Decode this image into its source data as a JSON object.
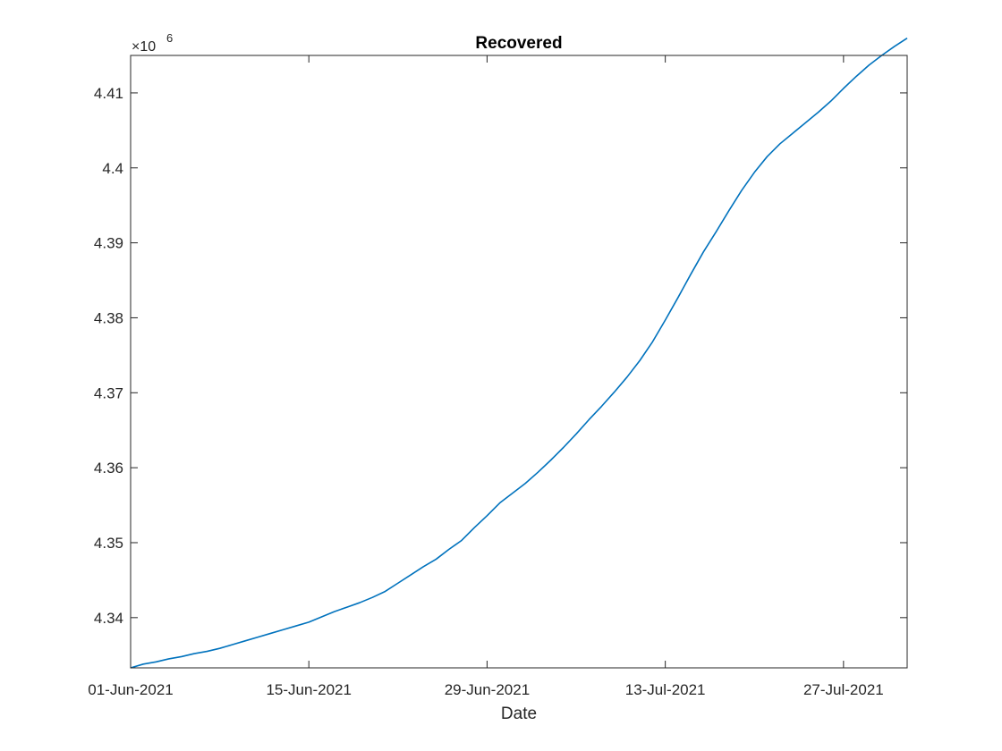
{
  "chart_data": {
    "type": "line",
    "title": "Recovered",
    "xlabel": "Date",
    "ylabel": "",
    "y_exponent_base": "×10",
    "y_exponent_power": "6",
    "xlim": [
      "2021-06-01",
      "2021-08-01"
    ],
    "ylim": [
      4.3333,
      4.415
    ],
    "x_ticks": [
      "2021-06-01",
      "2021-06-15",
      "2021-06-29",
      "2021-07-13",
      "2021-07-27"
    ],
    "x_tick_labels": [
      "01-Jun-2021",
      "15-Jun-2021",
      "29-Jun-2021",
      "13-Jul-2021",
      "27-Jul-2021"
    ],
    "y_ticks": [
      4.34,
      4.35,
      4.36,
      4.37,
      4.38,
      4.39,
      4.4,
      4.41
    ],
    "y_tick_labels": [
      "4.34",
      "4.35",
      "4.36",
      "4.37",
      "4.38",
      "4.39",
      "4.4",
      "4.41"
    ],
    "grid": false,
    "box": true,
    "series": [
      {
        "color": "#0072bd",
        "x": [
          "2021-06-01",
          "2021-06-02",
          "2021-06-03",
          "2021-06-04",
          "2021-06-05",
          "2021-06-06",
          "2021-06-07",
          "2021-06-08",
          "2021-06-09",
          "2021-06-10",
          "2021-06-11",
          "2021-06-12",
          "2021-06-13",
          "2021-06-14",
          "2021-06-15",
          "2021-06-16",
          "2021-06-17",
          "2021-06-18",
          "2021-06-19",
          "2021-06-20",
          "2021-06-21",
          "2021-06-22",
          "2021-06-23",
          "2021-06-24",
          "2021-06-25",
          "2021-06-26",
          "2021-06-27",
          "2021-06-28",
          "2021-06-29",
          "2021-06-30",
          "2021-07-01",
          "2021-07-02",
          "2021-07-03",
          "2021-07-04",
          "2021-07-05",
          "2021-07-06",
          "2021-07-07",
          "2021-07-08",
          "2021-07-09",
          "2021-07-10",
          "2021-07-11",
          "2021-07-12",
          "2021-07-13",
          "2021-07-14",
          "2021-07-15",
          "2021-07-16",
          "2021-07-17",
          "2021-07-18",
          "2021-07-19",
          "2021-07-20",
          "2021-07-21",
          "2021-07-22",
          "2021-07-23",
          "2021-07-24",
          "2021-07-25",
          "2021-07-26",
          "2021-07-27",
          "2021-07-28",
          "2021-07-29",
          "2021-07-30",
          "2021-07-31",
          "2021-08-01"
        ],
        "y": [
          4.3333,
          4.3338,
          4.3341,
          4.3345,
          4.3348,
          4.3352,
          4.3355,
          4.3359,
          4.3364,
          4.3369,
          4.3374,
          4.3379,
          4.3384,
          4.3389,
          4.3394,
          4.3401,
          4.3408,
          4.3414,
          4.342,
          4.3427,
          4.3435,
          4.3446,
          4.3457,
          4.3468,
          4.3478,
          4.3491,
          4.3503,
          4.352,
          4.3536,
          4.3553,
          4.3566,
          4.3579,
          4.3594,
          4.361,
          4.3627,
          4.3645,
          4.3664,
          4.3682,
          4.3701,
          4.3721,
          4.3743,
          4.3768,
          4.3797,
          4.3827,
          4.3858,
          4.3888,
          4.3915,
          4.3943,
          4.397,
          4.3994,
          4.4015,
          4.4032,
          4.4046,
          4.406,
          4.4074,
          4.4089,
          4.4106,
          4.4122,
          4.4137,
          4.415,
          4.4162,
          4.4173
        ]
      }
    ]
  }
}
